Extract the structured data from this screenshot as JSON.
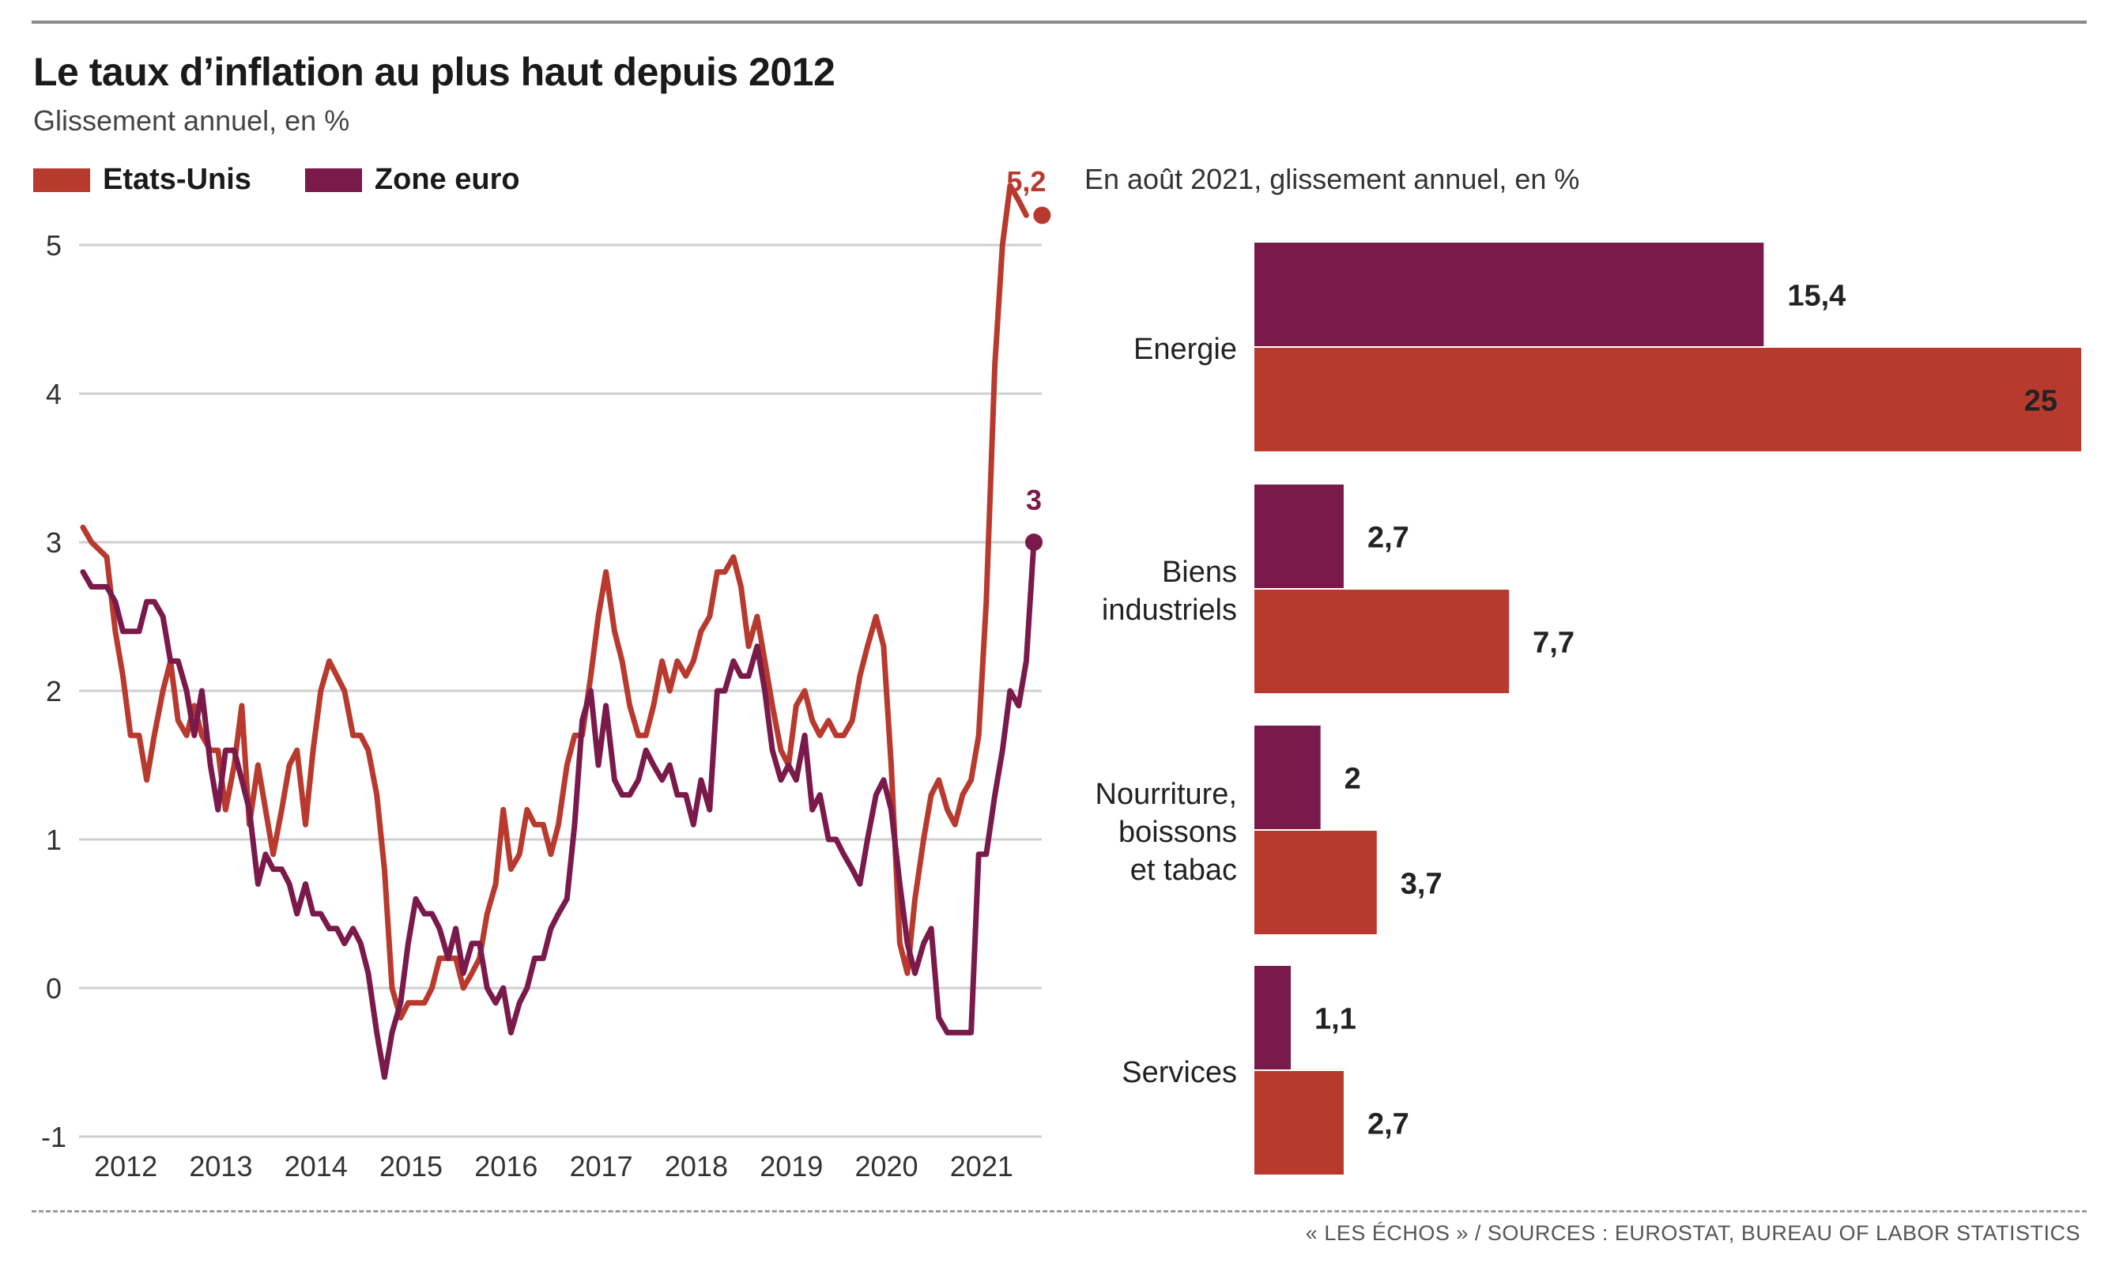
{
  "header": {
    "title": "Le taux d’inflation au plus haut depuis 2012",
    "subtitle": "Glissement annuel, en %",
    "right_title": "En août 2021, glissement annuel, en %",
    "source": "« LES ÉCHOS » / SOURCES : EUROSTAT, BUREAU OF LABOR STATISTICS"
  },
  "colors": {
    "us": "#b83a2e",
    "euro": "#7a1a4a",
    "grid": "#cfcfcf"
  },
  "chart_data": [
    {
      "type": "line",
      "title": "Le taux d’inflation au plus haut depuis 2012",
      "subtitle": "Glissement annuel, en %",
      "legend_position": "top-left",
      "ylim": [
        -1,
        5.4
      ],
      "yticks": [
        -1,
        0,
        1,
        2,
        3,
        4,
        5
      ],
      "ytick_labels": [
        "-1",
        "0",
        "1",
        "2",
        "3",
        "4",
        "5"
      ],
      "xlim": [
        2011.58,
        2021.58
      ],
      "xticks": [
        2012,
        2013,
        2014,
        2015,
        2016,
        2017,
        2018,
        2019,
        2020,
        2021
      ],
      "xtick_labels": [
        "2012",
        "2013",
        "2014",
        "2015",
        "2016",
        "2017",
        "2018",
        "2019",
        "2020",
        "2021"
      ],
      "grid": true,
      "series": [
        {
          "name": "Etats-Unis",
          "color": "#b83a2e",
          "end_label": "5,2",
          "points": [
            [
              2011.58,
              3.1
            ],
            [
              2011.67,
              3.0
            ],
            [
              2011.83,
              2.9
            ],
            [
              2011.92,
              2.4
            ],
            [
              2012.0,
              2.1
            ],
            [
              2012.08,
              1.7
            ],
            [
              2012.17,
              1.7
            ],
            [
              2012.25,
              1.4
            ],
            [
              2012.33,
              1.7
            ],
            [
              2012.42,
              2.0
            ],
            [
              2012.5,
              2.2
            ],
            [
              2012.58,
              1.8
            ],
            [
              2012.67,
              1.7
            ],
            [
              2012.75,
              1.9
            ],
            [
              2012.83,
              1.7
            ],
            [
              2012.92,
              1.6
            ],
            [
              2013.0,
              1.6
            ],
            [
              2013.08,
              1.2
            ],
            [
              2013.17,
              1.5
            ],
            [
              2013.25,
              1.9
            ],
            [
              2013.33,
              1.1
            ],
            [
              2013.42,
              1.5
            ],
            [
              2013.5,
              1.2
            ],
            [
              2013.58,
              0.9
            ],
            [
              2013.67,
              1.2
            ],
            [
              2013.75,
              1.5
            ],
            [
              2013.83,
              1.6
            ],
            [
              2013.92,
              1.1
            ],
            [
              2014.0,
              1.6
            ],
            [
              2014.08,
              2.0
            ],
            [
              2014.17,
              2.2
            ],
            [
              2014.25,
              2.1
            ],
            [
              2014.33,
              2.0
            ],
            [
              2014.42,
              1.7
            ],
            [
              2014.5,
              1.7
            ],
            [
              2014.58,
              1.6
            ],
            [
              2014.67,
              1.3
            ],
            [
              2014.75,
              0.8
            ],
            [
              2014.83,
              0.0
            ],
            [
              2014.92,
              -0.2
            ],
            [
              2015.0,
              -0.1
            ],
            [
              2015.08,
              -0.1
            ],
            [
              2015.17,
              -0.1
            ],
            [
              2015.25,
              0.0
            ],
            [
              2015.33,
              0.2
            ],
            [
              2015.42,
              0.2
            ],
            [
              2015.5,
              0.2
            ],
            [
              2015.58,
              0.0
            ],
            [
              2015.67,
              0.1
            ],
            [
              2015.75,
              0.2
            ],
            [
              2015.83,
              0.5
            ],
            [
              2015.92,
              0.7
            ],
            [
              2016.0,
              1.2
            ],
            [
              2016.08,
              0.8
            ],
            [
              2016.17,
              0.9
            ],
            [
              2016.25,
              1.2
            ],
            [
              2016.33,
              1.1
            ],
            [
              2016.42,
              1.1
            ],
            [
              2016.5,
              0.9
            ],
            [
              2016.58,
              1.1
            ],
            [
              2016.67,
              1.5
            ],
            [
              2016.75,
              1.7
            ],
            [
              2016.83,
              1.7
            ],
            [
              2016.92,
              2.1
            ],
            [
              2017.0,
              2.5
            ],
            [
              2017.08,
              2.8
            ],
            [
              2017.17,
              2.4
            ],
            [
              2017.25,
              2.2
            ],
            [
              2017.33,
              1.9
            ],
            [
              2017.42,
              1.7
            ],
            [
              2017.5,
              1.7
            ],
            [
              2017.58,
              1.9
            ],
            [
              2017.67,
              2.2
            ],
            [
              2017.75,
              2.0
            ],
            [
              2017.83,
              2.2
            ],
            [
              2017.92,
              2.1
            ],
            [
              2018.0,
              2.2
            ],
            [
              2018.08,
              2.4
            ],
            [
              2018.17,
              2.5
            ],
            [
              2018.25,
              2.8
            ],
            [
              2018.33,
              2.8
            ],
            [
              2018.42,
              2.9
            ],
            [
              2018.5,
              2.7
            ],
            [
              2018.58,
              2.3
            ],
            [
              2018.67,
              2.5
            ],
            [
              2018.75,
              2.2
            ],
            [
              2018.83,
              1.9
            ],
            [
              2018.92,
              1.6
            ],
            [
              2019.0,
              1.5
            ],
            [
              2019.08,
              1.9
            ],
            [
              2019.17,
              2.0
            ],
            [
              2019.25,
              1.8
            ],
            [
              2019.33,
              1.7
            ],
            [
              2019.42,
              1.8
            ],
            [
              2019.5,
              1.7
            ],
            [
              2019.58,
              1.7
            ],
            [
              2019.67,
              1.8
            ],
            [
              2019.75,
              2.1
            ],
            [
              2019.83,
              2.3
            ],
            [
              2019.92,
              2.5
            ],
            [
              2020.0,
              2.3
            ],
            [
              2020.08,
              1.5
            ],
            [
              2020.17,
              0.3
            ],
            [
              2020.25,
              0.1
            ],
            [
              2020.33,
              0.6
            ],
            [
              2020.42,
              1.0
            ],
            [
              2020.5,
              1.3
            ],
            [
              2020.58,
              1.4
            ],
            [
              2020.67,
              1.2
            ],
            [
              2020.75,
              1.1
            ],
            [
              2020.83,
              1.3
            ],
            [
              2020.92,
              1.4
            ],
            [
              2021.0,
              1.7
            ],
            [
              2021.08,
              2.6
            ],
            [
              2021.17,
              4.2
            ],
            [
              2021.25,
              5.0
            ],
            [
              2021.33,
              5.4
            ],
            [
              2021.42,
              5.3
            ],
            [
              2021.5,
              5.2
            ]
          ]
        },
        {
          "name": "Zone euro",
          "color": "#7a1a4a",
          "end_label": "3",
          "points": [
            [
              2011.58,
              2.8
            ],
            [
              2011.67,
              2.7
            ],
            [
              2011.83,
              2.7
            ],
            [
              2011.92,
              2.6
            ],
            [
              2012.0,
              2.4
            ],
            [
              2012.08,
              2.4
            ],
            [
              2012.17,
              2.4
            ],
            [
              2012.25,
              2.6
            ],
            [
              2012.33,
              2.6
            ],
            [
              2012.42,
              2.5
            ],
            [
              2012.5,
              2.2
            ],
            [
              2012.58,
              2.2
            ],
            [
              2012.67,
              2.0
            ],
            [
              2012.75,
              1.7
            ],
            [
              2012.83,
              2.0
            ],
            [
              2012.92,
              1.5
            ],
            [
              2013.0,
              1.2
            ],
            [
              2013.08,
              1.6
            ],
            [
              2013.17,
              1.6
            ],
            [
              2013.25,
              1.4
            ],
            [
              2013.33,
              1.2
            ],
            [
              2013.42,
              0.7
            ],
            [
              2013.5,
              0.9
            ],
            [
              2013.58,
              0.8
            ],
            [
              2013.67,
              0.8
            ],
            [
              2013.75,
              0.7
            ],
            [
              2013.83,
              0.5
            ],
            [
              2013.92,
              0.7
            ],
            [
              2014.0,
              0.5
            ],
            [
              2014.08,
              0.5
            ],
            [
              2014.17,
              0.4
            ],
            [
              2014.25,
              0.4
            ],
            [
              2014.33,
              0.3
            ],
            [
              2014.42,
              0.4
            ],
            [
              2014.5,
              0.3
            ],
            [
              2014.58,
              0.1
            ],
            [
              2014.67,
              -0.3
            ],
            [
              2014.75,
              -0.6
            ],
            [
              2014.83,
              -0.3
            ],
            [
              2014.92,
              -0.1
            ],
            [
              2015.0,
              0.3
            ],
            [
              2015.08,
              0.6
            ],
            [
              2015.17,
              0.5
            ],
            [
              2015.25,
              0.5
            ],
            [
              2015.33,
              0.4
            ],
            [
              2015.42,
              0.2
            ],
            [
              2015.5,
              0.4
            ],
            [
              2015.58,
              0.1
            ],
            [
              2015.67,
              0.3
            ],
            [
              2015.75,
              0.3
            ],
            [
              2015.83,
              0.0
            ],
            [
              2015.92,
              -0.1
            ],
            [
              2016.0,
              0.0
            ],
            [
              2016.08,
              -0.3
            ],
            [
              2016.17,
              -0.1
            ],
            [
              2016.25,
              0.0
            ],
            [
              2016.33,
              0.2
            ],
            [
              2016.42,
              0.2
            ],
            [
              2016.5,
              0.4
            ],
            [
              2016.58,
              0.5
            ],
            [
              2016.67,
              0.6
            ],
            [
              2016.75,
              1.1
            ],
            [
              2016.83,
              1.8
            ],
            [
              2016.92,
              2.0
            ],
            [
              2017.0,
              1.5
            ],
            [
              2017.08,
              1.9
            ],
            [
              2017.17,
              1.4
            ],
            [
              2017.25,
              1.3
            ],
            [
              2017.33,
              1.3
            ],
            [
              2017.42,
              1.4
            ],
            [
              2017.5,
              1.6
            ],
            [
              2017.58,
              1.5
            ],
            [
              2017.67,
              1.4
            ],
            [
              2017.75,
              1.5
            ],
            [
              2017.83,
              1.3
            ],
            [
              2017.92,
              1.3
            ],
            [
              2018.0,
              1.1
            ],
            [
              2018.08,
              1.4
            ],
            [
              2018.17,
              1.2
            ],
            [
              2018.25,
              2.0
            ],
            [
              2018.33,
              2.0
            ],
            [
              2018.42,
              2.2
            ],
            [
              2018.5,
              2.1
            ],
            [
              2018.58,
              2.1
            ],
            [
              2018.67,
              2.3
            ],
            [
              2018.75,
              2.0
            ],
            [
              2018.83,
              1.6
            ],
            [
              2018.92,
              1.4
            ],
            [
              2019.0,
              1.5
            ],
            [
              2019.08,
              1.4
            ],
            [
              2019.17,
              1.7
            ],
            [
              2019.25,
              1.2
            ],
            [
              2019.33,
              1.3
            ],
            [
              2019.42,
              1.0
            ],
            [
              2019.5,
              1.0
            ],
            [
              2019.58,
              0.9
            ],
            [
              2019.67,
              0.8
            ],
            [
              2019.75,
              0.7
            ],
            [
              2019.83,
              1.0
            ],
            [
              2019.92,
              1.3
            ],
            [
              2020.0,
              1.4
            ],
            [
              2020.08,
              1.2
            ],
            [
              2020.17,
              0.7
            ],
            [
              2020.25,
              0.3
            ],
            [
              2020.33,
              0.1
            ],
            [
              2020.42,
              0.3
            ],
            [
              2020.5,
              0.4
            ],
            [
              2020.58,
              -0.2
            ],
            [
              2020.67,
              -0.3
            ],
            [
              2020.75,
              -0.3
            ],
            [
              2020.83,
              -0.3
            ],
            [
              2020.92,
              -0.3
            ],
            [
              2021.0,
              0.9
            ],
            [
              2021.08,
              0.9
            ],
            [
              2021.17,
              1.3
            ],
            [
              2021.25,
              1.6
            ],
            [
              2021.33,
              2.0
            ],
            [
              2021.42,
              1.9
            ],
            [
              2021.5,
              2.2
            ],
            [
              2021.58,
              3.0
            ]
          ]
        }
      ]
    },
    {
      "type": "bar",
      "orientation": "horizontal",
      "title": "En août 2021, glissement annuel, en %",
      "xlim": [
        0,
        25
      ],
      "categories": [
        "Energie",
        "Biens\nindustriels",
        "Nourriture,\nboissons\net tabac",
        "Services"
      ],
      "series": [
        {
          "name": "Zone euro",
          "color": "#7a1a4a",
          "values": [
            15.4,
            2.7,
            2.0,
            1.1
          ],
          "value_labels": [
            "15,4",
            "2,7",
            "2",
            "1,1"
          ]
        },
        {
          "name": "Etats-Unis",
          "color": "#b83a2e",
          "values": [
            25.0,
            7.7,
            3.7,
            2.7
          ],
          "value_labels": [
            "25",
            "7,7",
            "3,7",
            "2,7"
          ]
        }
      ]
    }
  ]
}
